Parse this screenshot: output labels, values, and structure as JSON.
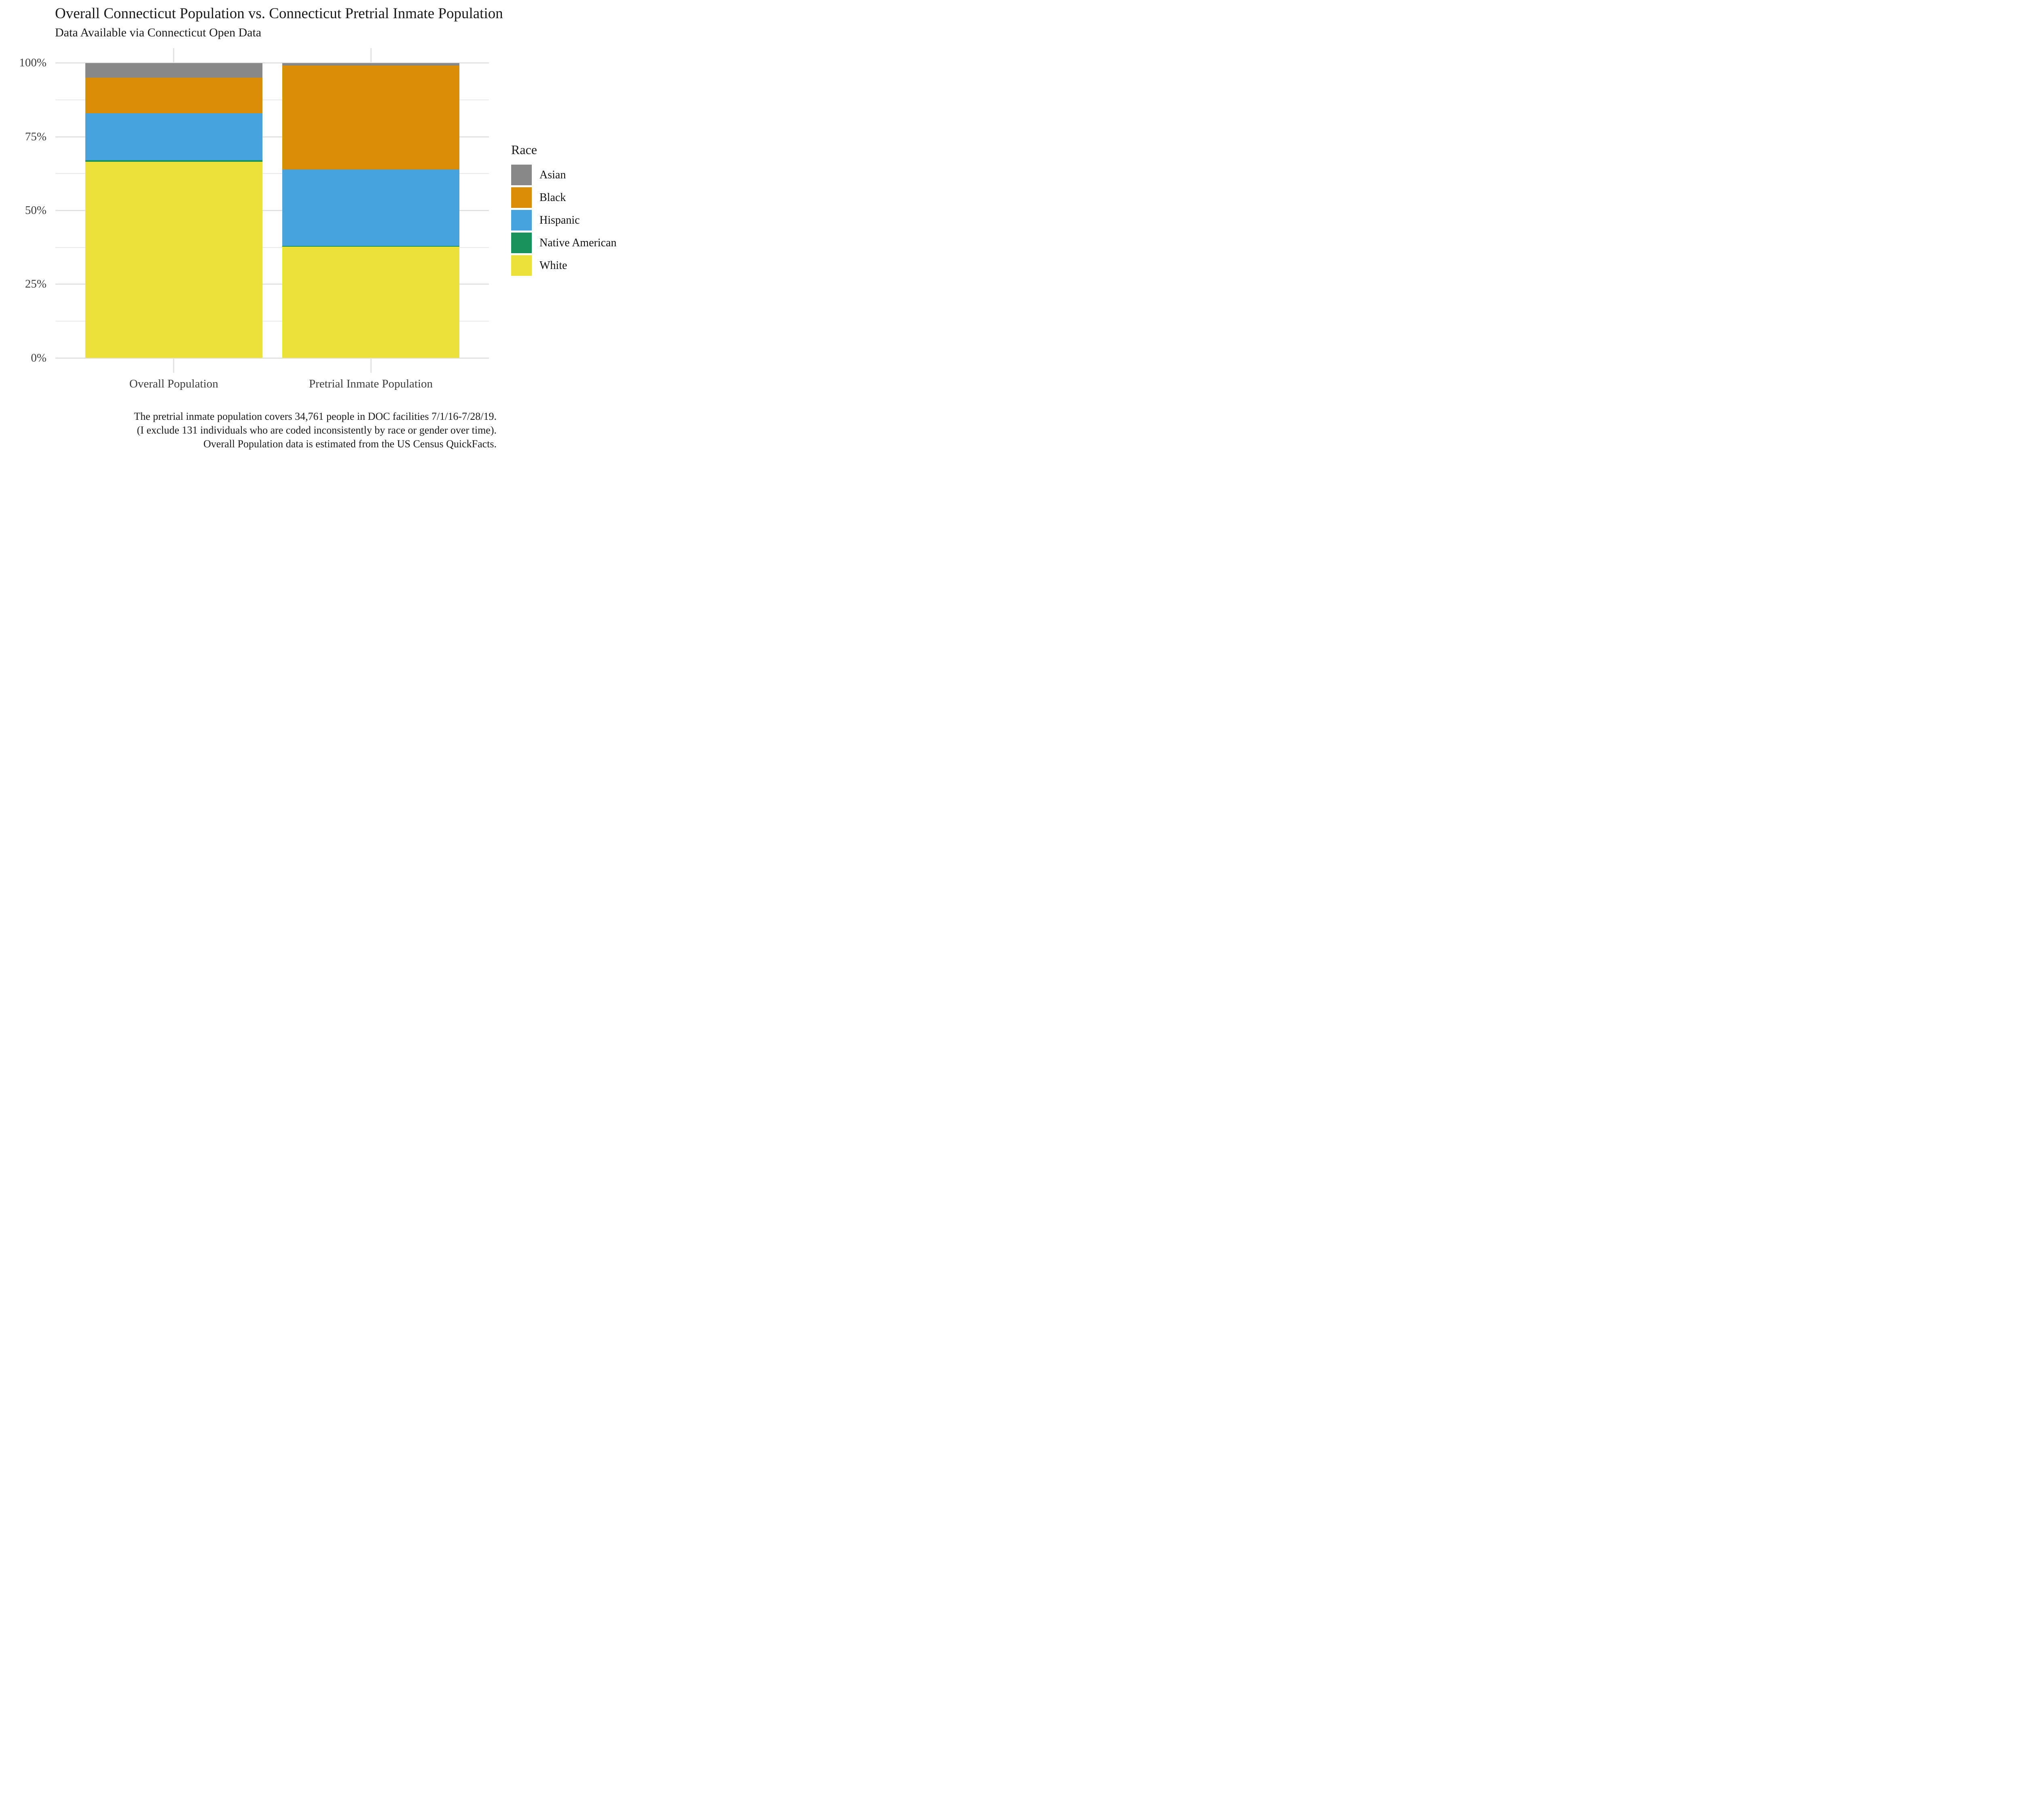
{
  "title": "Overall Connecticut Population vs. Connecticut Pretrial Inmate Population",
  "subtitle": "Data Available via Connecticut Open Data",
  "legend": {
    "title": "Race",
    "items": [
      {
        "label": "Asian",
        "color": "#888888"
      },
      {
        "label": "Black",
        "color": "#DB8D08"
      },
      {
        "label": "Hispanic",
        "color": "#47A3E0"
      },
      {
        "label": "Native American",
        "color": "#17935B"
      },
      {
        "label": "White",
        "color": "#EBE138"
      }
    ]
  },
  "y_axis": {
    "tick_labels": [
      "0%",
      "25%",
      "50%",
      "75%",
      "100%"
    ],
    "major_ticks_pct": [
      0,
      25,
      50,
      75,
      100
    ],
    "minor_ticks_pct": [
      12.5,
      37.5,
      62.5,
      87.5
    ]
  },
  "chart_data": {
    "type": "bar",
    "subtype": "stacked-percent",
    "title": "Overall Connecticut Population vs. Connecticut Pretrial Inmate Population",
    "subtitle": "Data Available via Connecticut Open Data",
    "categories": [
      "Overall Population",
      "Pretrial Inmate Population"
    ],
    "series": [
      {
        "name": "Asian",
        "color": "#888888",
        "values": [
          5.0,
          0.8
        ]
      },
      {
        "name": "Black",
        "color": "#DB8D08",
        "values": [
          12.0,
          35.3
        ]
      },
      {
        "name": "Hispanic",
        "color": "#47A3E0",
        "values": [
          16.0,
          25.9
        ]
      },
      {
        "name": "Native American",
        "color": "#17935B",
        "values": [
          0.5,
          0.3
        ]
      },
      {
        "name": "White",
        "color": "#EBE138",
        "values": [
          66.5,
          37.7
        ]
      }
    ],
    "xlabel": "",
    "ylabel": "",
    "ylim": [
      0,
      100
    ],
    "grid": true,
    "legend_position": "right",
    "legend_title": "Race"
  },
  "caption": {
    "lines": [
      "The pretrial inmate population covers 34,761 people in DOC facilities 7/1/16-7/28/19.",
      "(I exclude 131 individuals who are coded inconsistently by race or gender over time).",
      "Overall Population data is estimated from the US Census QuickFacts."
    ]
  }
}
